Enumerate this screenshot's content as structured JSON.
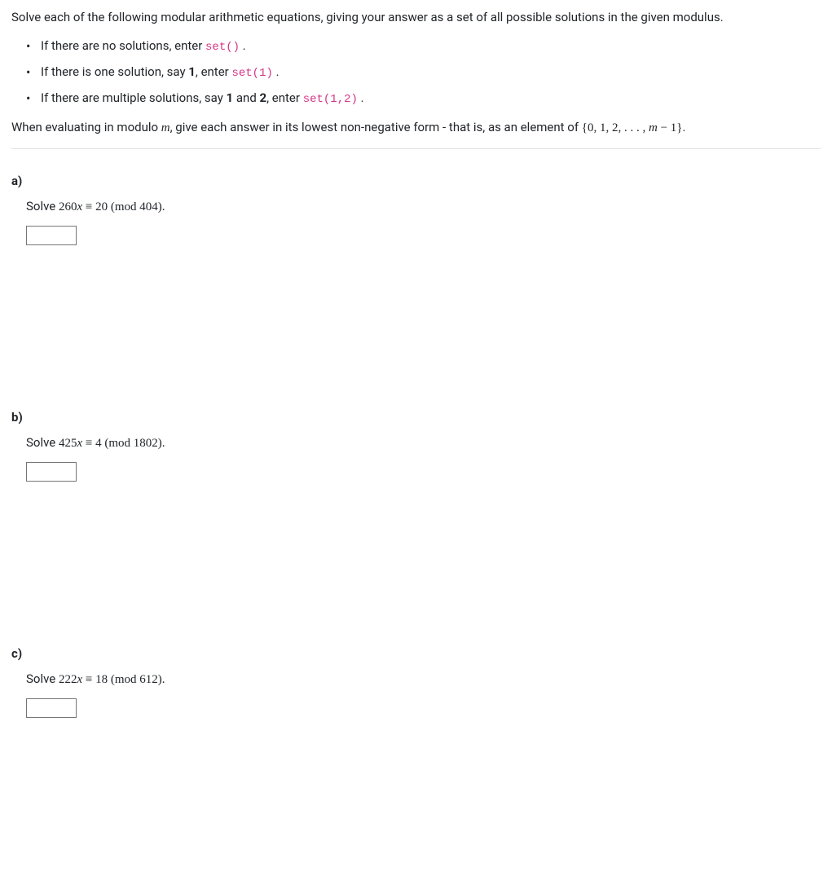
{
  "intro": "Solve each of the following modular arithmetic equations, giving your answer as a set of all possible solutions in the given modulus.",
  "bullets": {
    "b1_pre": "If there are no solutions, enter ",
    "b1_code": "set()",
    "b1_post": " .",
    "b2_pre": "If there is one solution, say ",
    "b2_val": "1",
    "b2_mid": ", enter ",
    "b2_code": "set(1)",
    "b2_post": " .",
    "b3_pre": "If there are multiple solutions, say ",
    "b3_val1": "1",
    "b3_and": " and ",
    "b3_val2": "2",
    "b3_mid": ", enter ",
    "b3_code": "set(1,2)",
    "b3_post": " ."
  },
  "modline": {
    "pre": "When evaluating in modulo ",
    "mvar": "m",
    "mid": ", give each answer in its lowest non-negative form - that is, as an element of ",
    "set_open": "{0, 1, 2, . . . , ",
    "m": "m",
    "minus": " − 1}",
    "end": "."
  },
  "parts": {
    "a": {
      "label": "a)",
      "solve": "Solve ",
      "coef": "260",
      "x": "x",
      "eq": " ≡ ",
      "rhs": "20",
      "mod_open": "  (mod  ",
      "modval": "404",
      "mod_close": ")."
    },
    "b": {
      "label": "b)",
      "solve": "Solve ",
      "coef": "425",
      "x": "x",
      "eq": " ≡ ",
      "rhs": "4",
      "mod_open": "  (mod  ",
      "modval": "1802",
      "mod_close": ")."
    },
    "c": {
      "label": "c)",
      "solve": "Solve ",
      "coef": "222",
      "x": "x",
      "eq": " ≡ ",
      "rhs": "18",
      "mod_open": "  (mod  ",
      "modval": "612",
      "mod_close": ")."
    }
  }
}
